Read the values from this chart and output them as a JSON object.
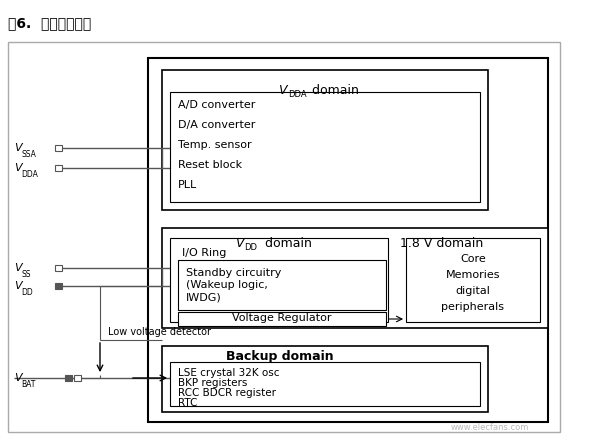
{
  "title": "图6.  电源供电框图",
  "bg_color": "#ffffff",
  "vda_contents": [
    "A/D converter",
    "D/A converter",
    "Temp. sensor",
    "Reset block",
    "PLL"
  ],
  "v18_contents": [
    "Core",
    "Memories",
    "digital",
    "peripherals"
  ],
  "backup_contents": [
    "LSE crystal 32K osc",
    "BKP registers",
    "RCC BDCR register",
    "RTC"
  ],
  "watermark": "www.elecfans.com"
}
